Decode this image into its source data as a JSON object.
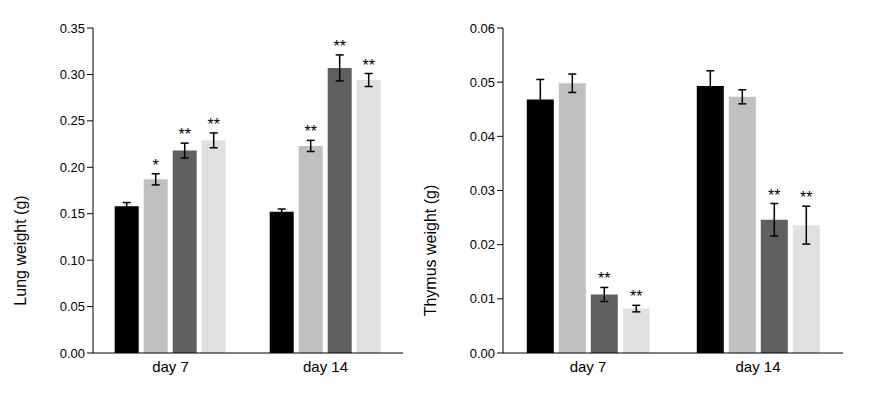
{
  "chart_data": [
    {
      "type": "bar",
      "y_label": "Lung weight (g)",
      "categories": [
        "day 7",
        "day 14"
      ],
      "ylim": [
        0,
        0.35
      ],
      "yticks": [
        {
          "value": 0,
          "label": "0.00"
        },
        {
          "value": 0.05,
          "label": "0.05"
        },
        {
          "value": 0.1,
          "label": "0.10"
        },
        {
          "value": 0.15,
          "label": "0.15"
        },
        {
          "value": 0.2,
          "label": "0.20"
        },
        {
          "value": 0.25,
          "label": "0.25"
        },
        {
          "value": 0.3,
          "label": "0.30"
        },
        {
          "value": 0.35,
          "label": "0.35"
        }
      ],
      "grid": false,
      "series": [
        {
          "color": "#000000",
          "values": [
            0.158,
            0.152
          ],
          "errors": [
            0.004,
            0.003
          ],
          "significance": [
            null,
            null
          ]
        },
        {
          "color": "#c0c0c0",
          "values": [
            0.187,
            0.223
          ],
          "errors": [
            0.006,
            0.006
          ],
          "significance": [
            "*",
            "**"
          ]
        },
        {
          "color": "#606060",
          "values": [
            0.218,
            0.307
          ],
          "errors": [
            0.008,
            0.014
          ],
          "significance": [
            "**",
            "**"
          ]
        },
        {
          "color": "#e0e0e0",
          "values": [
            0.229,
            0.294
          ],
          "errors": [
            0.008,
            0.007
          ],
          "significance": [
            "**",
            "**"
          ]
        }
      ]
    },
    {
      "type": "bar",
      "y_label": "Thymus weight (g)",
      "categories": [
        "day 7",
        "day 14"
      ],
      "ylim": [
        0,
        0.06
      ],
      "yticks": [
        {
          "value": 0,
          "label": "0.00"
        },
        {
          "value": 0.01,
          "label": "0.01"
        },
        {
          "value": 0.02,
          "label": "0.02"
        },
        {
          "value": 0.03,
          "label": "0.03"
        },
        {
          "value": 0.04,
          "label": "0.04"
        },
        {
          "value": 0.05,
          "label": "0.05"
        },
        {
          "value": 0.06,
          "label": "0.06"
        }
      ],
      "grid": false,
      "series": [
        {
          "color": "#000000",
          "values": [
            0.0468,
            0.0493
          ],
          "errors": [
            0.0037,
            0.0028
          ],
          "significance": [
            null,
            null
          ]
        },
        {
          "color": "#c0c0c0",
          "values": [
            0.0498,
            0.0473
          ],
          "errors": [
            0.0017,
            0.0013
          ],
          "significance": [
            null,
            null
          ]
        },
        {
          "color": "#606060",
          "values": [
            0.0108,
            0.0246
          ],
          "errors": [
            0.0013,
            0.003
          ],
          "significance": [
            "**",
            "**"
          ]
        },
        {
          "color": "#e0e0e0",
          "values": [
            0.0082,
            0.0236
          ],
          "errors": [
            0.0006,
            0.0035
          ],
          "significance": [
            "**",
            "**"
          ]
        }
      ]
    }
  ]
}
